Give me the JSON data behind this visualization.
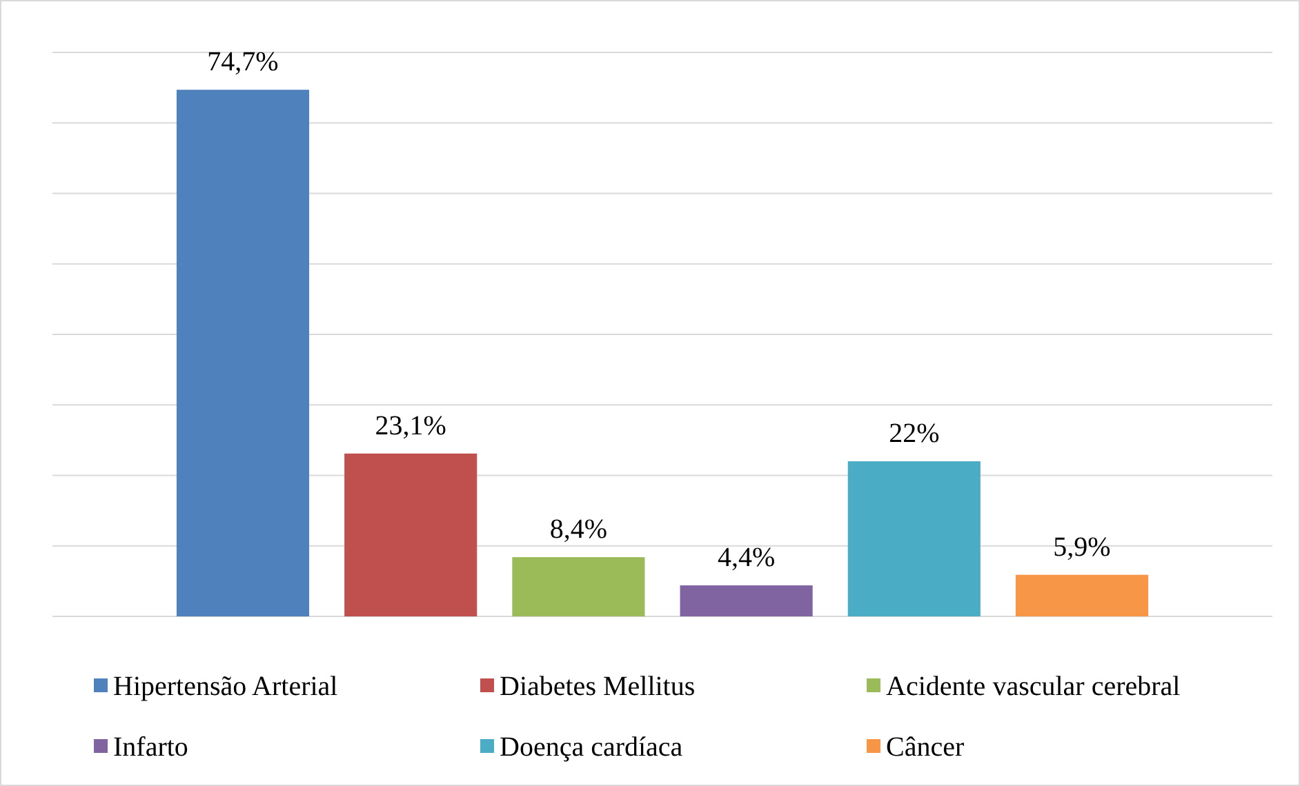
{
  "chart_data": {
    "type": "bar",
    "categories": [
      null
    ],
    "series": [
      {
        "name": "Hipertensão Arterial",
        "color": "#4f81bd",
        "values": [
          74.7
        ],
        "value_labels": [
          "74,7%"
        ]
      },
      {
        "name": "Diabetes Mellitus",
        "color": "#c0504d",
        "values": [
          23.1
        ],
        "value_labels": [
          "23,1%"
        ]
      },
      {
        "name": "Acidente vascular cerebral",
        "color": "#9bbb59",
        "values": [
          8.4
        ],
        "value_labels": [
          "8,4%"
        ]
      },
      {
        "name": "Infarto",
        "color": "#8064a2",
        "values": [
          4.4
        ],
        "value_labels": [
          "4,4%"
        ]
      },
      {
        "name": "Doença cardíaca",
        "color": "#4bacc6",
        "values": [
          22
        ],
        "value_labels": [
          "22%"
        ]
      },
      {
        "name": "Câncer",
        "color": "#f79646",
        "values": [
          5.9
        ],
        "value_labels": [
          "5,9%"
        ]
      }
    ],
    "ylim": [
      0,
      80
    ],
    "yticks": [
      {
        "value": 0,
        "label": null
      },
      {
        "value": 10,
        "label": null
      },
      {
        "value": 20,
        "label": null
      },
      {
        "value": 30,
        "label": null
      },
      {
        "value": 40,
        "label": null
      },
      {
        "value": 50,
        "label": null
      },
      {
        "value": 60,
        "label": null
      },
      {
        "value": 70,
        "label": null
      },
      {
        "value": 80,
        "label": null
      }
    ],
    "grid": "y",
    "legend": "bottom"
  }
}
